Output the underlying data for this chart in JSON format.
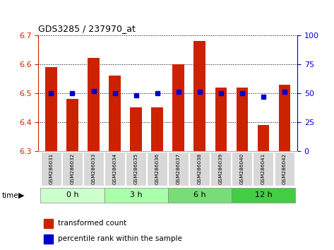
{
  "title": "GDS3285 / 237970_at",
  "samples": [
    "GSM286031",
    "GSM286032",
    "GSM286033",
    "GSM286034",
    "GSM286035",
    "GSM286036",
    "GSM286037",
    "GSM286038",
    "GSM286039",
    "GSM286040",
    "GSM286041",
    "GSM286042"
  ],
  "bar_values": [
    6.59,
    6.48,
    6.62,
    6.56,
    6.45,
    6.45,
    6.6,
    6.68,
    6.52,
    6.52,
    6.39,
    6.53
  ],
  "percentile_values": [
    50,
    50,
    52,
    50,
    48,
    50,
    51,
    51,
    50,
    50,
    47,
    51
  ],
  "bar_color": "#cc2200",
  "percentile_color": "#0000cc",
  "ylim": [
    6.3,
    6.7
  ],
  "yticks": [
    6.3,
    6.4,
    6.5,
    6.6,
    6.7
  ],
  "right_ylim": [
    0,
    100
  ],
  "right_yticks": [
    0,
    25,
    50,
    75,
    100
  ],
  "bar_base": 6.3,
  "groups": [
    {
      "label": "0 h",
      "start": 0,
      "end": 3,
      "color": "#ccffcc"
    },
    {
      "label": "3 h",
      "start": 3,
      "end": 6,
      "color": "#aaeea a"
    },
    {
      "label": "6 h",
      "start": 6,
      "end": 9,
      "color": "#77dd77"
    },
    {
      "label": "12 h",
      "start": 9,
      "end": 12,
      "color": "#44cc44"
    }
  ],
  "legend_bar_label": "transformed count",
  "legend_pct_label": "percentile rank within the sample",
  "bg_plot": "#ffffff",
  "bg_sample": "#d8d8d8",
  "left_tick_color": "#cc2200",
  "right_tick_color": "#0000cc"
}
